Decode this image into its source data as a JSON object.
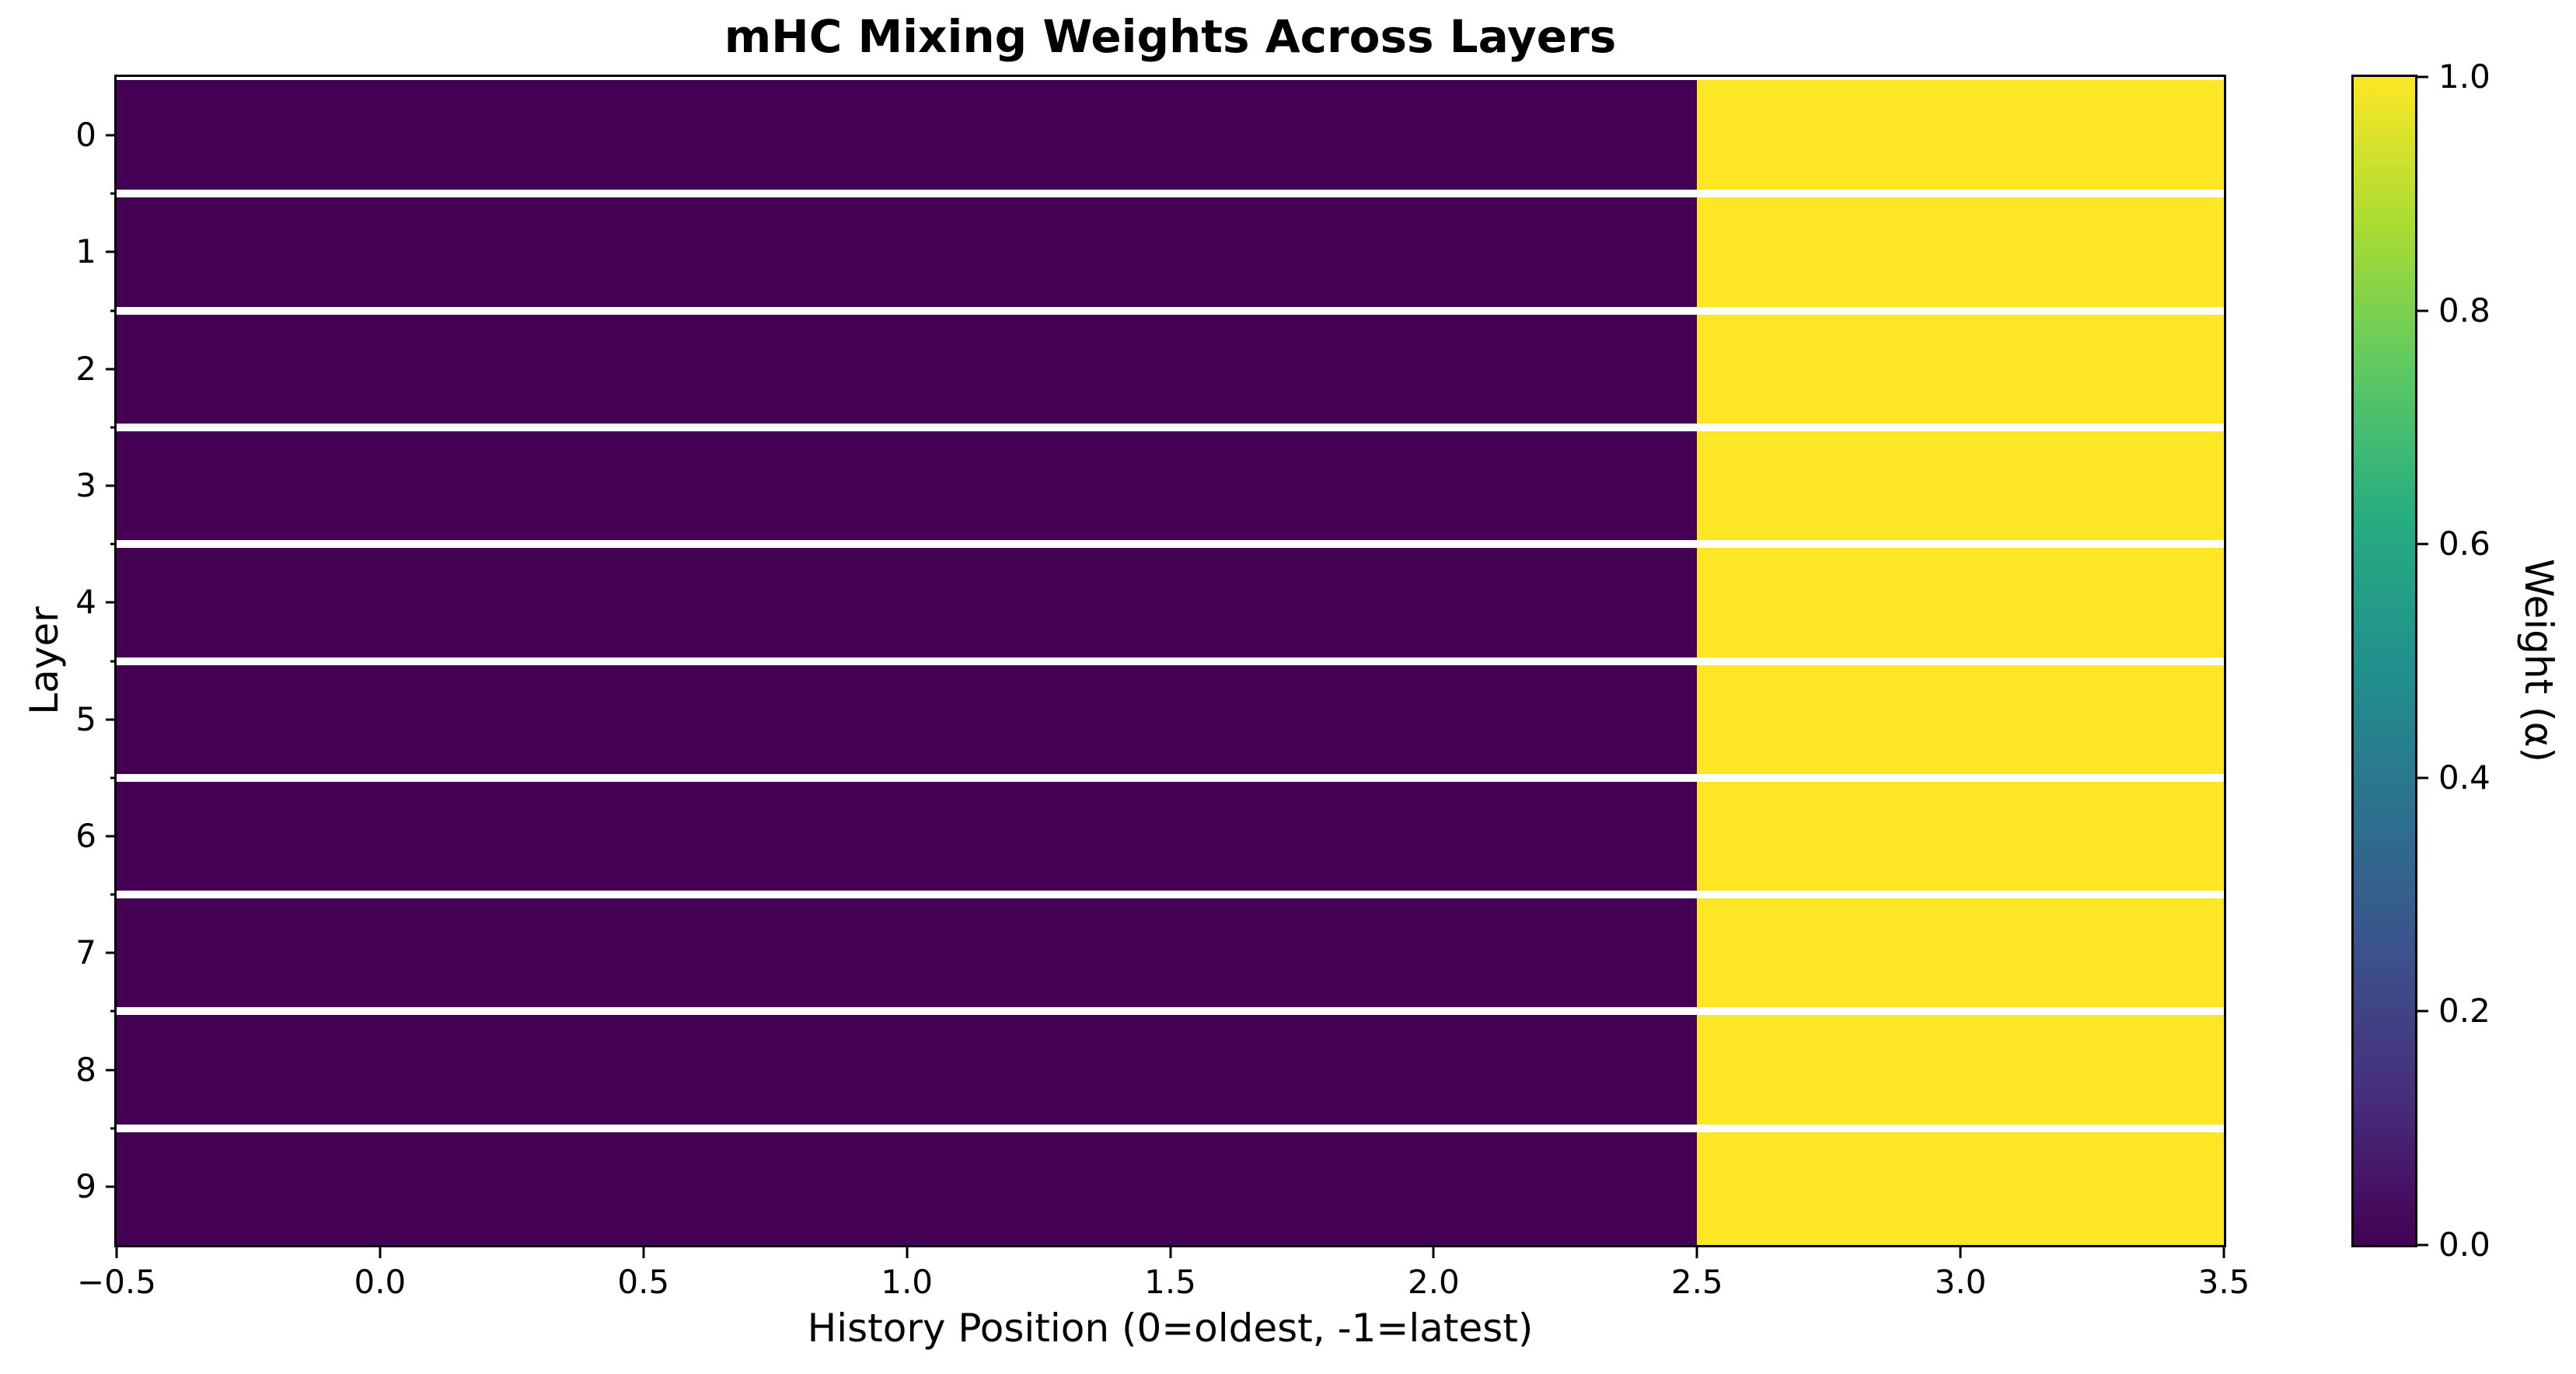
{
  "title": "mHC Mixing Weights Across Layers",
  "chart_data": {
    "type": "heatmap",
    "title": "mHC Mixing Weights Across Layers",
    "xlabel": "History Position (0=oldest, -1=latest)",
    "ylabel": "Layer",
    "colorbar_label": "Weight (α)",
    "rows": 10,
    "cols": 4,
    "matrix": [
      [
        0.0,
        0.0,
        0.0,
        1.0
      ],
      [
        0.0,
        0.0,
        0.0,
        1.0
      ],
      [
        0.0,
        0.0,
        0.0,
        1.0
      ],
      [
        0.0,
        0.0,
        0.0,
        1.0
      ],
      [
        0.0,
        0.0,
        0.0,
        1.0
      ],
      [
        0.0,
        0.0,
        0.0,
        1.0
      ],
      [
        0.0,
        0.0,
        0.0,
        1.0
      ],
      [
        0.0,
        0.0,
        0.0,
        1.0
      ],
      [
        0.0,
        0.0,
        0.0,
        1.0
      ],
      [
        0.0,
        0.0,
        0.0,
        1.0
      ]
    ],
    "x_ticks": [
      "−0.5",
      "0.0",
      "0.5",
      "1.0",
      "1.5",
      "2.0",
      "2.5",
      "3.0",
      "3.5"
    ],
    "y_ticks": [
      "0",
      "1",
      "2",
      "3",
      "4",
      "5",
      "6",
      "7",
      "8",
      "9"
    ],
    "colorbar_ticks": [
      "1.0",
      "0.8",
      "0.6",
      "0.4",
      "0.2",
      "0.0"
    ],
    "x_range": [
      -0.5,
      3.5
    ],
    "colorbar_range": [
      0.0,
      1.0
    ],
    "colormap": "viridis",
    "grid": "horizontal white separator lines between heatmap rows",
    "legend_position": "colorbar right",
    "colors": {
      "value_low": "#440154",
      "value_high": "#fde725",
      "row_separator": "#ffffff",
      "spine": "#000000",
      "background": "#ffffff",
      "text": "#000000"
    }
  }
}
